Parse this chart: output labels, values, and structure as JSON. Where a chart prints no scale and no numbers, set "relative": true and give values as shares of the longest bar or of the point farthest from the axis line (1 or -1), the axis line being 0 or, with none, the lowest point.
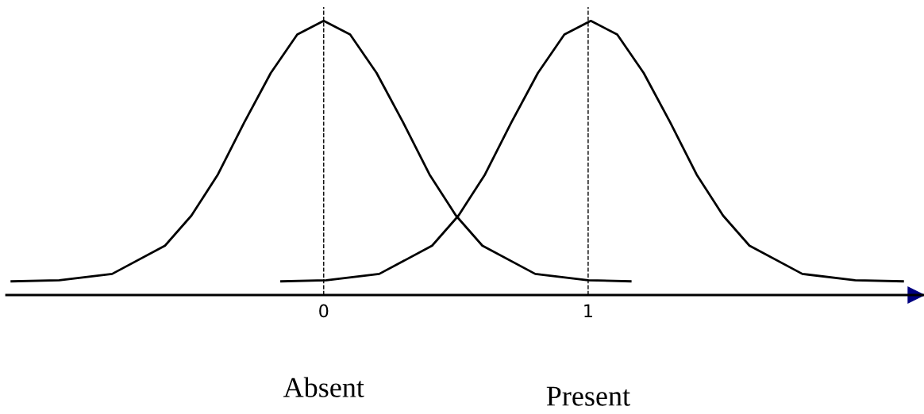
{
  "chart_data": {
    "type": "line",
    "relative": true,
    "series": [
      {
        "color": "#000000",
        "x": [
          -1.18,
          -1.0,
          -0.8,
          -0.6,
          -0.5,
          -0.4,
          -0.3,
          -0.2,
          -0.1,
          0,
          0.1,
          0.2,
          0.3,
          0.4,
          0.5,
          0.6,
          0.8,
          1.0,
          1.16
        ],
        "values": [
          0.05,
          0.054,
          0.077,
          0.18,
          0.29,
          0.44,
          0.63,
          0.81,
          0.95,
          1,
          0.95,
          0.81,
          0.63,
          0.44,
          0.29,
          0.18,
          0.077,
          0.054,
          0.05
        ]
      },
      {
        "color": "#000000",
        "x": [
          -0.16,
          0.01,
          0.21,
          0.41,
          0.51,
          0.61,
          0.71,
          0.81,
          0.91,
          1.01,
          1.11,
          1.21,
          1.31,
          1.41,
          1.51,
          1.61,
          1.81,
          2.01,
          2.19
        ],
        "values": [
          0.05,
          0.054,
          0.077,
          0.18,
          0.29,
          0.44,
          0.63,
          0.81,
          0.95,
          1,
          0.95,
          0.81,
          0.63,
          0.44,
          0.29,
          0.18,
          0.077,
          0.054,
          0.05
        ]
      }
    ],
    "xlim": [
      -1.2,
      2.27
    ],
    "xticks": [
      0,
      1
    ],
    "ref_lines": [
      {
        "axis": "x",
        "value": 0,
        "line_style": "dashed",
        "color": "#000000"
      },
      {
        "axis": "x",
        "value": 1,
        "line_style": "dashed",
        "color": "#000000"
      }
    ],
    "annotations": [
      "Absent",
      "Present"
    ],
    "grid": false,
    "legend": false,
    "marker": "none",
    "line_style": "solid"
  }
}
